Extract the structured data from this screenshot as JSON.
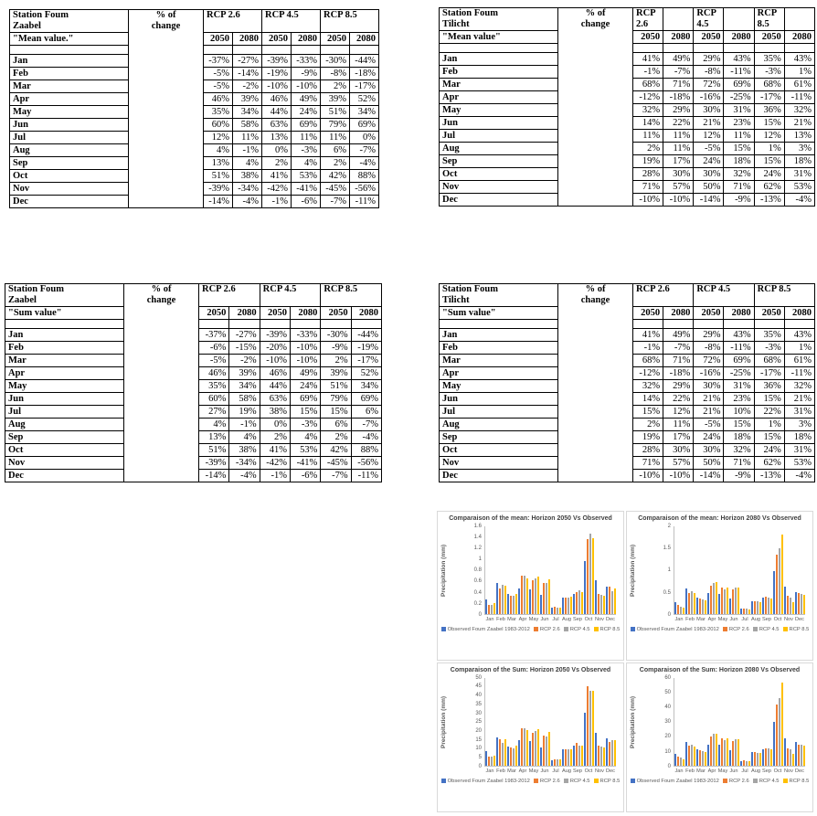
{
  "accent_colors": {
    "observed_blue": "#4472C4",
    "rcp26_orange": "#ED7D31",
    "rcp45_gray": "#A5A5A5",
    "rcp85_yellow": "#FFC000"
  },
  "months": [
    "Jan",
    "Feb",
    "Mar",
    "Apr",
    "May",
    "Jun",
    "Jul",
    "Aug",
    "Sep",
    "Oct",
    "Nov",
    "Dec"
  ],
  "tables": [
    {
      "id": "mean-zaabel",
      "station": "Station Foum\nZaabel",
      "value_label": "\"Mean value.\"",
      "change_label": "% of\nchange",
      "scenarios": [
        "RCP 2.6",
        "RCP 4.5",
        "RCP 8.5"
      ],
      "years": [
        "2050",
        "2080"
      ],
      "rows": [
        {
          "month": "Jan",
          "values": [
            "-37%",
            "-27%",
            "-39%",
            "-33%",
            "-30%",
            "-44%"
          ]
        },
        {
          "month": "Feb",
          "values": [
            "-5%",
            "-14%",
            "-19%",
            "-9%",
            "-8%",
            "-18%"
          ]
        },
        {
          "month": "Mar",
          "values": [
            "-5%",
            "-2%",
            "-10%",
            "-10%",
            "2%",
            "-17%"
          ]
        },
        {
          "month": "Apr",
          "values": [
            "46%",
            "39%",
            "46%",
            "49%",
            "39%",
            "52%"
          ]
        },
        {
          "month": "May",
          "values": [
            "35%",
            "34%",
            "44%",
            "24%",
            "51%",
            "34%"
          ]
        },
        {
          "month": "Jun",
          "values": [
            "60%",
            "58%",
            "63%",
            "69%",
            "79%",
            "69%"
          ]
        },
        {
          "month": "Jul",
          "values": [
            "12%",
            "11%",
            "13%",
            "11%",
            "11%",
            "0%"
          ]
        },
        {
          "month": "Aug",
          "values": [
            "4%",
            "-1%",
            "0%",
            "-3%",
            "6%",
            "-7%"
          ]
        },
        {
          "month": "Sep",
          "values": [
            "13%",
            "4%",
            "2%",
            "4%",
            "2%",
            "-4%"
          ]
        },
        {
          "month": "Oct",
          "values": [
            "51%",
            "38%",
            "41%",
            "53%",
            "42%",
            "88%"
          ]
        },
        {
          "month": "Nov",
          "values": [
            "-39%",
            "-34%",
            "-42%",
            "-41%",
            "-45%",
            "-56%"
          ]
        },
        {
          "month": "Dec",
          "values": [
            "-14%",
            "-4%",
            "-1%",
            "-6%",
            "-7%",
            "-11%"
          ]
        }
      ]
    },
    {
      "id": "mean-tilicht",
      "station": "Station Foum\nTilicht",
      "value_label": "\"Mean value\"",
      "change_label": "% of\nchange",
      "scenarios": [
        "RCP 2.6",
        "RCP 4.5",
        "RCP 8.5"
      ],
      "years": [
        "2050",
        "2080"
      ],
      "rows": [
        {
          "month": "Jan",
          "values": [
            "41%",
            "49%",
            "29%",
            "43%",
            "35%",
            "43%"
          ]
        },
        {
          "month": "Feb",
          "values": [
            "-1%",
            "-7%",
            "-8%",
            "-11%",
            "-3%",
            "1%"
          ]
        },
        {
          "month": "Mar",
          "values": [
            "68%",
            "71%",
            "72%",
            "69%",
            "68%",
            "61%"
          ]
        },
        {
          "month": "Apr",
          "values": [
            "-12%",
            "-18%",
            "-16%",
            "-25%",
            "-17%",
            "-11%"
          ]
        },
        {
          "month": "May",
          "values": [
            "32%",
            "29%",
            "30%",
            "31%",
            "36%",
            "32%"
          ]
        },
        {
          "month": "Jun",
          "values": [
            "14%",
            "22%",
            "21%",
            "23%",
            "15%",
            "21%"
          ]
        },
        {
          "month": "Jul",
          "values": [
            "11%",
            "11%",
            "12%",
            "11%",
            "12%",
            "13%"
          ]
        },
        {
          "month": "Aug",
          "values": [
            "2%",
            "11%",
            "-5%",
            "15%",
            "1%",
            "3%"
          ]
        },
        {
          "month": "Sep",
          "values": [
            "19%",
            "17%",
            "24%",
            "18%",
            "15%",
            "18%"
          ]
        },
        {
          "month": "Oct",
          "values": [
            "28%",
            "30%",
            "30%",
            "32%",
            "24%",
            "31%"
          ]
        },
        {
          "month": "Nov",
          "values": [
            "71%",
            "57%",
            "50%",
            "71%",
            "62%",
            "53%"
          ]
        },
        {
          "month": "Dec",
          "values": [
            "-10%",
            "-10%",
            "-14%",
            "-9%",
            "-13%",
            "-4%"
          ]
        }
      ]
    },
    {
      "id": "sum-zaabel",
      "station": "Station Foum\nZaabel",
      "value_label": "\"Sum value\"",
      "change_label": "% of\nchange",
      "scenarios": [
        "RCP 2.6",
        "RCP 4.5",
        "RCP 8.5"
      ],
      "years": [
        "2050",
        "2080"
      ],
      "rows": [
        {
          "month": "Jan",
          "values": [
            "-37%",
            "-27%",
            "-39%",
            "-33%",
            "-30%",
            "-44%"
          ]
        },
        {
          "month": "Feb",
          "values": [
            "-6%",
            "-15%",
            "-20%",
            "-10%",
            "-9%",
            "-19%"
          ]
        },
        {
          "month": "Mar",
          "values": [
            "-5%",
            "-2%",
            "-10%",
            "-10%",
            "2%",
            "-17%"
          ]
        },
        {
          "month": "Apr",
          "values": [
            "46%",
            "39%",
            "46%",
            "49%",
            "39%",
            "52%"
          ]
        },
        {
          "month": "May",
          "values": [
            "35%",
            "34%",
            "44%",
            "24%",
            "51%",
            "34%"
          ]
        },
        {
          "month": "Jun",
          "values": [
            "60%",
            "58%",
            "63%",
            "69%",
            "79%",
            "69%"
          ]
        },
        {
          "month": "Jul",
          "values": [
            "27%",
            "19%",
            "38%",
            "15%",
            "15%",
            "6%"
          ]
        },
        {
          "month": "Aug",
          "values": [
            "4%",
            "-1%",
            "0%",
            "-3%",
            "6%",
            "-7%"
          ]
        },
        {
          "month": "Sep",
          "values": [
            "13%",
            "4%",
            "2%",
            "4%",
            "2%",
            "-4%"
          ]
        },
        {
          "month": "Oct",
          "values": [
            "51%",
            "38%",
            "41%",
            "53%",
            "42%",
            "88%"
          ]
        },
        {
          "month": "Nov",
          "values": [
            "-39%",
            "-34%",
            "-42%",
            "-41%",
            "-45%",
            "-56%"
          ]
        },
        {
          "month": "Dec",
          "values": [
            "-14%",
            "-4%",
            "-1%",
            "-6%",
            "-7%",
            "-11%"
          ]
        }
      ]
    },
    {
      "id": "sum-tilicht",
      "station": "Station Foum\nTilicht",
      "value_label": "\"Sum value\"",
      "change_label": "% of\nchange",
      "scenarios": [
        "RCP 2.6",
        "RCP 4.5",
        "RCP 8.5"
      ],
      "years": [
        "2050",
        "2080"
      ],
      "rows": [
        {
          "month": "Jan",
          "values": [
            "41%",
            "49%",
            "29%",
            "43%",
            "35%",
            "43%"
          ]
        },
        {
          "month": "Feb",
          "values": [
            "-1%",
            "-7%",
            "-8%",
            "-11%",
            "-3%",
            "1%"
          ]
        },
        {
          "month": "Mar",
          "values": [
            "68%",
            "71%",
            "72%",
            "69%",
            "68%",
            "61%"
          ]
        },
        {
          "month": "Apr",
          "values": [
            "-12%",
            "-18%",
            "-16%",
            "-25%",
            "-17%",
            "-11%"
          ]
        },
        {
          "month": "May",
          "values": [
            "32%",
            "29%",
            "30%",
            "31%",
            "36%",
            "32%"
          ]
        },
        {
          "month": "Jun",
          "values": [
            "14%",
            "22%",
            "21%",
            "23%",
            "15%",
            "21%"
          ]
        },
        {
          "month": "Jul",
          "values": [
            "15%",
            "12%",
            "21%",
            "10%",
            "22%",
            "31%"
          ]
        },
        {
          "month": "Aug",
          "values": [
            "2%",
            "11%",
            "-5%",
            "15%",
            "1%",
            "3%"
          ]
        },
        {
          "month": "Sep",
          "values": [
            "19%",
            "17%",
            "24%",
            "18%",
            "15%",
            "18%"
          ]
        },
        {
          "month": "Oct",
          "values": [
            "28%",
            "30%",
            "30%",
            "32%",
            "24%",
            "31%"
          ]
        },
        {
          "month": "Nov",
          "values": [
            "71%",
            "57%",
            "50%",
            "71%",
            "62%",
            "53%"
          ]
        },
        {
          "month": "Dec",
          "values": [
            "-10%",
            "-10%",
            "-14%",
            "-9%",
            "-13%",
            "-4%"
          ]
        }
      ]
    }
  ],
  "chart_data": [
    {
      "type": "bar",
      "title": "Comparaison of the mean: Horizon 2050 Vs Observed",
      "ylabel": "Precipitation (mm)",
      "categories": [
        "Jan",
        "Feb",
        "Mar",
        "Apr",
        "May",
        "Jun",
        "Jul",
        "Aug",
        "Sep",
        "Oct",
        "Nov",
        "Dec"
      ],
      "ylim": [
        0,
        1.6
      ],
      "ticks": [
        "0",
        "0.2",
        "0.4",
        "0.6",
        "0.8",
        "1",
        "1.2",
        "1.4",
        "1.6"
      ],
      "grid": false,
      "legend_position": "bottom",
      "series": [
        {
          "name": "Observed Foum Zaabel 1983-2012",
          "color": "#4472C4",
          "values": [
            0.27,
            0.56,
            0.36,
            0.47,
            0.45,
            0.35,
            0.11,
            0.29,
            0.37,
            0.97,
            0.62,
            0.5
          ]
        },
        {
          "name": "RCP 2.6",
          "color": "#ED7D31",
          "values": [
            0.16,
            0.46,
            0.33,
            0.7,
            0.61,
            0.57,
            0.13,
            0.3,
            0.4,
            1.37,
            0.36,
            0.5
          ]
        },
        {
          "name": "RCP 4.5",
          "color": "#A5A5A5",
          "values": [
            0.17,
            0.53,
            0.33,
            0.7,
            0.64,
            0.57,
            0.12,
            0.3,
            0.43,
            1.46,
            0.35,
            0.42
          ]
        },
        {
          "name": "RCP 8.5",
          "color": "#FFC000",
          "values": [
            0.19,
            0.52,
            0.36,
            0.65,
            0.68,
            0.63,
            0.11,
            0.31,
            0.39,
            1.38,
            0.33,
            0.46
          ]
        }
      ]
    },
    {
      "type": "bar",
      "title": "Comparaison of the mean: Horizon 2080 Vs Observed",
      "ylabel": "Precipitation (mm)",
      "categories": [
        "Jan",
        "Feb",
        "Mar",
        "Apr",
        "May",
        "Jun",
        "Jul",
        "Aug",
        "Sep",
        "Oct",
        "Nov",
        "Dec"
      ],
      "ylim": [
        0,
        2
      ],
      "ticks": [
        "0",
        "0.5",
        "1",
        "1.5",
        "2"
      ],
      "grid": false,
      "legend_position": "bottom",
      "series": [
        {
          "name": "Observed Foum Zaabel 1983-2012",
          "color": "#4472C4",
          "values": [
            0.27,
            0.57,
            0.36,
            0.48,
            0.45,
            0.35,
            0.11,
            0.29,
            0.38,
            0.97,
            0.62,
            0.49
          ]
        },
        {
          "name": "RCP 2.6",
          "color": "#ED7D31",
          "values": [
            0.2,
            0.48,
            0.35,
            0.65,
            0.6,
            0.55,
            0.12,
            0.29,
            0.39,
            1.34,
            0.41,
            0.47
          ]
        },
        {
          "name": "RCP 4.5",
          "color": "#A5A5A5",
          "values": [
            0.17,
            0.52,
            0.32,
            0.7,
            0.56,
            0.59,
            0.11,
            0.28,
            0.38,
            1.49,
            0.36,
            0.46
          ]
        },
        {
          "name": "RCP 8.5",
          "color": "#FFC000",
          "values": [
            0.15,
            0.47,
            0.3,
            0.73,
            0.6,
            0.59,
            0.1,
            0.27,
            0.35,
            1.81,
            0.27,
            0.43
          ]
        }
      ]
    },
    {
      "type": "bar",
      "title": "Comparaison of the Sum: Horizon 2050 Vs Observed",
      "ylabel": "Precipitation (mm)",
      "categories": [
        "Jan",
        "Feb",
        "Mar",
        "Apr",
        "May",
        "Jun",
        "Jul",
        "Aug",
        "Sep",
        "Oct",
        "Nov",
        "Dec"
      ],
      "ylim": [
        0,
        50
      ],
      "ticks": [
        "0",
        "5",
        "10",
        "15",
        "20",
        "25",
        "30",
        "35",
        "40",
        "45",
        "50"
      ],
      "grid": false,
      "legend_position": "bottom",
      "series": [
        {
          "name": "Observed Foum Zaabel 1983-2012",
          "color": "#4472C4",
          "values": [
            8,
            16,
            11,
            14.5,
            14,
            10.3,
            3,
            9,
            11.2,
            30,
            18.5,
            15.5
          ]
        },
        {
          "name": "RCP 2.6",
          "color": "#ED7D31",
          "values": [
            5,
            15,
            10.5,
            21,
            18.7,
            17,
            3.7,
            9.4,
            13,
            45,
            11.2,
            13.5
          ]
        },
        {
          "name": "RCP 4.5",
          "color": "#A5A5A5",
          "values": [
            5,
            13,
            10,
            21,
            19.5,
            16.8,
            3.5,
            9.3,
            11.5,
            42.5,
            11,
            14.5
          ]
        },
        {
          "name": "RCP 8.5",
          "color": "#FFC000",
          "values": [
            5.5,
            14.8,
            11.3,
            20,
            20.5,
            19,
            3.6,
            9.5,
            11.5,
            42.5,
            10.2,
            14.7
          ]
        }
      ]
    },
    {
      "type": "bar",
      "title": "Comparaison of the Sum: Horizon 2080 Vs Observed",
      "ylabel": "Precipitation (mm)",
      "categories": [
        "Jan",
        "Feb",
        "Mar",
        "Apr",
        "May",
        "Jun",
        "Jul",
        "Aug",
        "Sep",
        "Oct",
        "Nov",
        "Dec"
      ],
      "ylim": [
        0,
        60
      ],
      "ticks": [
        "0",
        "10",
        "20",
        "30",
        "40",
        "50",
        "60"
      ],
      "grid": false,
      "legend_position": "bottom",
      "series": [
        {
          "name": "Observed Foum Zaabel 1983-2012",
          "color": "#4472C4",
          "values": [
            8,
            16,
            11,
            14.5,
            14,
            10.3,
            3,
            9,
            11.3,
            30,
            18.5,
            15.8
          ]
        },
        {
          "name": "RCP 2.6",
          "color": "#ED7D31",
          "values": [
            6,
            13.5,
            10.5,
            20,
            18.5,
            16.5,
            3.3,
            9,
            11.5,
            41.5,
            12,
            14.5
          ]
        },
        {
          "name": "RCP 4.5",
          "color": "#A5A5A5",
          "values": [
            5.5,
            14,
            10,
            21.5,
            17.5,
            18,
            3.2,
            8.8,
            11.5,
            46,
            10.8,
            14
          ]
        },
        {
          "name": "RCP 8.5",
          "color": "#FFC000",
          "values": [
            4.5,
            13,
            9.3,
            22,
            18.5,
            18,
            3,
            8.3,
            10.8,
            57,
            8,
            13.5
          ]
        }
      ]
    }
  ]
}
